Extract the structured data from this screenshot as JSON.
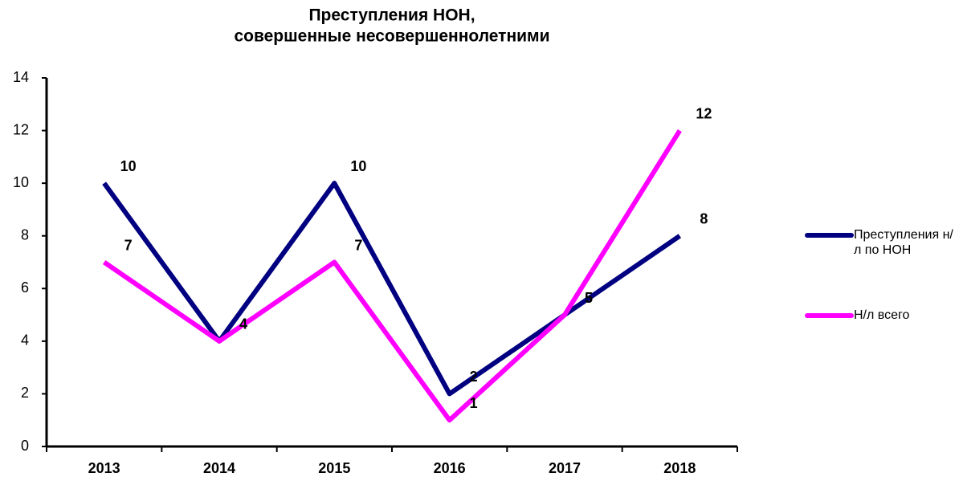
{
  "chart_data": {
    "type": "line",
    "title": [
      "Преступления НОН,",
      "совершенные несовершеннолетними"
    ],
    "categories": [
      "2013",
      "2014",
      "2015",
      "2016",
      "2017",
      "2018"
    ],
    "series": [
      {
        "name": "Преступления н/л по НОН",
        "color": "#000080",
        "values": [
          10,
          4,
          10,
          2,
          5,
          8
        ]
      },
      {
        "name": "Н/л всего",
        "color": "#ff00ff",
        "values": [
          7,
          4,
          7,
          1,
          5,
          12
        ]
      }
    ],
    "ylim": [
      0,
      14
    ],
    "yticks": [
      0,
      2,
      4,
      6,
      8,
      10,
      12,
      14
    ],
    "grid": false,
    "legend": "right"
  }
}
